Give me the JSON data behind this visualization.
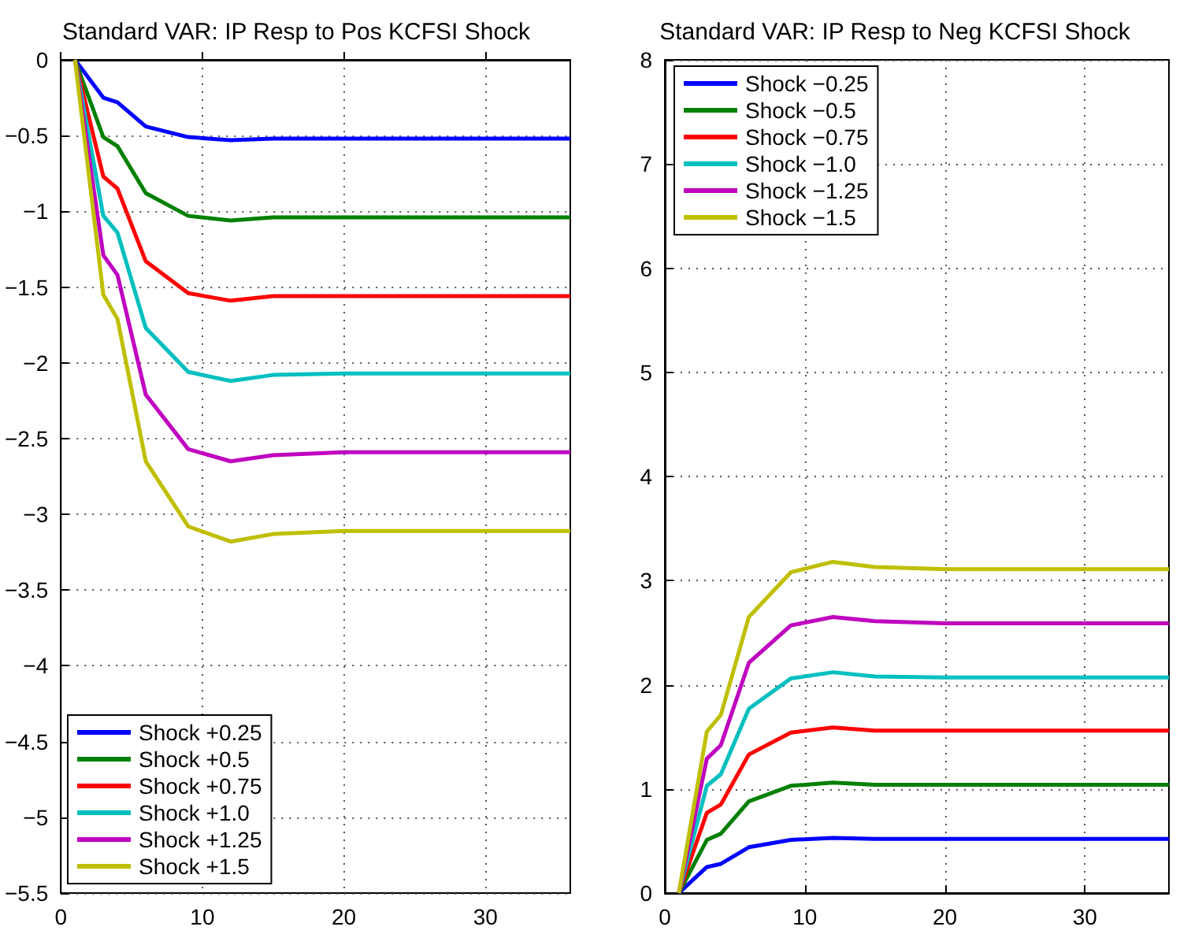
{
  "chart_data": [
    {
      "type": "line",
      "title": "Standard VAR: IP Resp to Pos KCFSI Shock",
      "x": [
        1,
        3,
        4,
        6,
        9,
        12,
        15,
        20,
        36
      ],
      "xlim": [
        0,
        36
      ],
      "xticks": [
        0,
        10,
        20,
        30
      ],
      "ylim": [
        -5.5,
        0
      ],
      "yticks": [
        -5.5,
        -5,
        -4.5,
        -4,
        -3.5,
        -3,
        -2.5,
        -2,
        -1.5,
        -1,
        -0.5,
        0
      ],
      "grid": true,
      "legend": "bottom left",
      "marker": "none",
      "line_style": "solid",
      "series": [
        {
          "name": "Shock +0.25",
          "color": "#0000ff",
          "values": [
            0,
            -0.25,
            -0.28,
            -0.44,
            -0.51,
            -0.53,
            -0.52,
            -0.52,
            -0.52
          ]
        },
        {
          "name": "Shock +0.5",
          "color": "#008000",
          "values": [
            0,
            -0.51,
            -0.57,
            -0.88,
            -1.03,
            -1.06,
            -1.04,
            -1.04,
            -1.04
          ]
        },
        {
          "name": "Shock +0.75",
          "color": "#ff0000",
          "values": [
            0,
            -0.77,
            -0.85,
            -1.33,
            -1.54,
            -1.59,
            -1.56,
            -1.56,
            -1.56
          ]
        },
        {
          "name": "Shock +1.0",
          "color": "#00bfbf",
          "values": [
            0,
            -1.03,
            -1.14,
            -1.77,
            -2.06,
            -2.12,
            -2.08,
            -2.07,
            -2.07
          ]
        },
        {
          "name": "Shock +1.25",
          "color": "#bf00bf",
          "values": [
            0,
            -1.29,
            -1.42,
            -2.21,
            -2.57,
            -2.65,
            -2.61,
            -2.59,
            -2.59
          ]
        },
        {
          "name": "Shock +1.5",
          "color": "#bfbf00",
          "values": [
            0,
            -1.55,
            -1.71,
            -2.65,
            -3.08,
            -3.18,
            -3.13,
            -3.11,
            -3.11
          ]
        }
      ]
    },
    {
      "type": "line",
      "title": "Standard VAR: IP Resp to Neg KCFSI Shock",
      "x": [
        1,
        3,
        4,
        6,
        9,
        12,
        15,
        20,
        36
      ],
      "xlim": [
        0,
        36
      ],
      "xticks": [
        0,
        10,
        20,
        30
      ],
      "ylim": [
        0,
        8
      ],
      "yticks": [
        0,
        1,
        2,
        3,
        4,
        5,
        6,
        7,
        8
      ],
      "grid": true,
      "legend": "top left",
      "marker": "none",
      "line_style": "solid",
      "series": [
        {
          "name": "Shock −0.25",
          "color": "#0000ff",
          "values": [
            0,
            0.25,
            0.28,
            0.44,
            0.51,
            0.53,
            0.52,
            0.52,
            0.52
          ]
        },
        {
          "name": "Shock −0.5",
          "color": "#008000",
          "values": [
            0,
            0.51,
            0.57,
            0.88,
            1.03,
            1.06,
            1.04,
            1.04,
            1.04
          ]
        },
        {
          "name": "Shock −0.75",
          "color": "#ff0000",
          "values": [
            0,
            0.77,
            0.85,
            1.33,
            1.54,
            1.59,
            1.56,
            1.56,
            1.56
          ]
        },
        {
          "name": "Shock −1.0",
          "color": "#00bfbf",
          "values": [
            0,
            1.03,
            1.14,
            1.77,
            2.06,
            2.12,
            2.08,
            2.07,
            2.07
          ]
        },
        {
          "name": "Shock −1.25",
          "color": "#bf00bf",
          "values": [
            0,
            1.29,
            1.42,
            2.21,
            2.57,
            2.65,
            2.61,
            2.59,
            2.59
          ]
        },
        {
          "name": "Shock −1.5",
          "color": "#bfbf00",
          "values": [
            0,
            1.55,
            1.71,
            2.65,
            3.08,
            3.18,
            3.13,
            3.11,
            3.11
          ]
        }
      ]
    }
  ]
}
